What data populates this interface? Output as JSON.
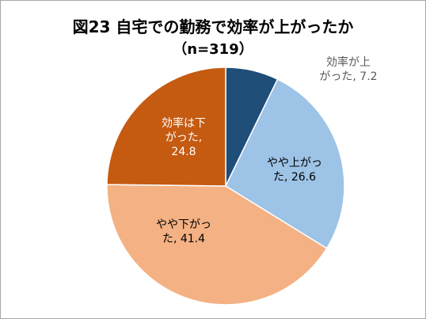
{
  "chart_data": {
    "type": "pie",
    "title": "図23 自宅での勤務で効率が上がったか",
    "subtitle": "（n=319）",
    "start_angle_deg": 0,
    "direction": "clockwise",
    "slices": [
      {
        "label_lines": [
          "効率が上",
          "がった, 7.2"
        ],
        "value": 7.2,
        "color": "#1f4e79",
        "label_color": "dark"
      },
      {
        "label_lines": [
          "やや上がっ",
          "た, 26.6"
        ],
        "value": 26.6,
        "color": "#9dc3e6",
        "label_color": "black"
      },
      {
        "label_lines": [
          "やや下がっ",
          "た, 41.4"
        ],
        "value": 41.4,
        "color": "#f4b183",
        "label_color": "black"
      },
      {
        "label_lines": [
          "効率は下",
          "がった,",
          "24.8"
        ],
        "value": 24.8,
        "color": "#c55a11",
        "label_color": "light"
      }
    ]
  }
}
